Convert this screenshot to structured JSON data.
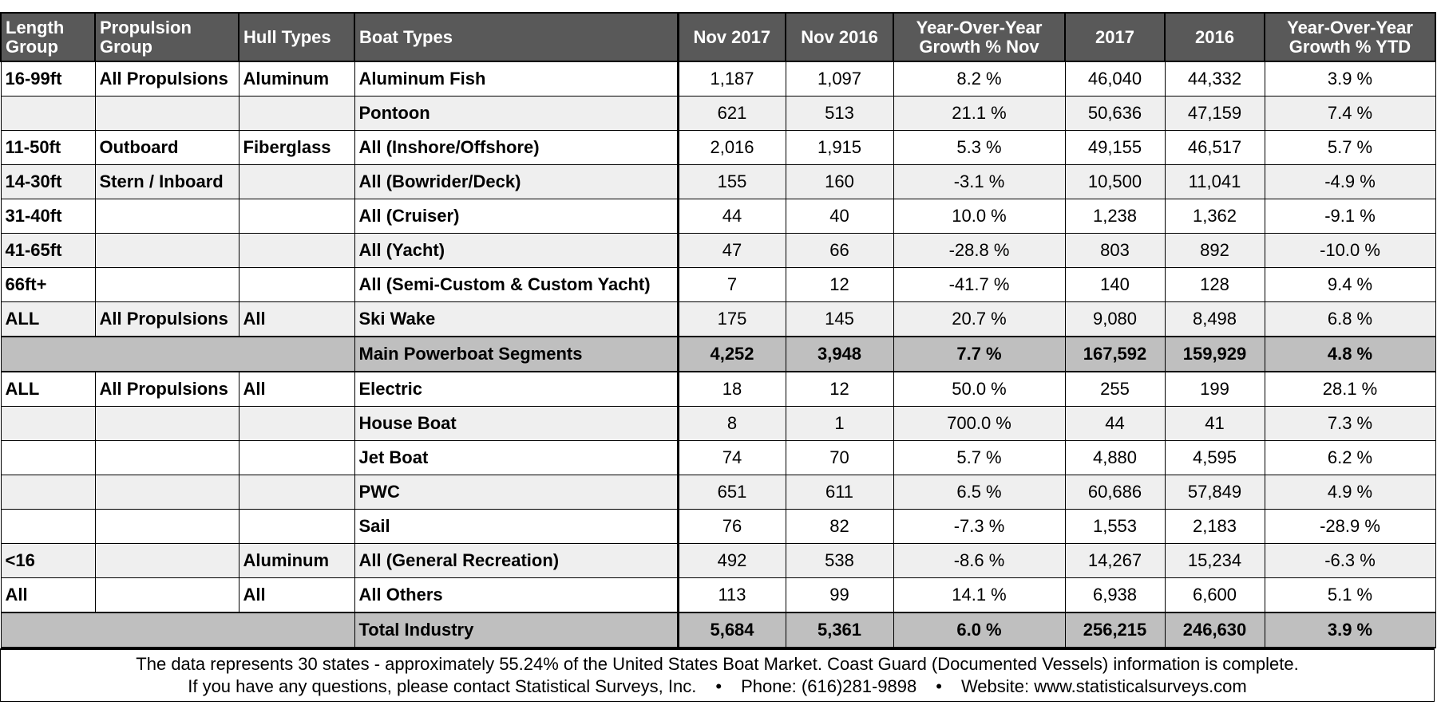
{
  "headers": [
    "Length Group",
    "Propulsion Group",
    "Hull Types",
    "Boat Types",
    "Nov 2017",
    "Nov 2016",
    "Year-Over-Year Growth % Nov",
    "2017",
    "2016",
    "Year-Over-Year Growth % YTD"
  ],
  "section1": [
    {
      "length": "16-99ft",
      "propulsion": "All Propulsions",
      "hull": "Aluminum",
      "boat": "Aluminum Fish",
      "nov17": "1,187",
      "nov16": "1,097",
      "yoy_nov": "8.2 %",
      "y2017": "46,040",
      "y2016": "44,332",
      "yoy_ytd": "3.9 %"
    },
    {
      "length": "",
      "propulsion": "",
      "hull": "",
      "boat": "Pontoon",
      "nov17": "621",
      "nov16": "513",
      "yoy_nov": "21.1 %",
      "y2017": "50,636",
      "y2016": "47,159",
      "yoy_ytd": "7.4 %"
    },
    {
      "length": "11-50ft",
      "propulsion": "Outboard",
      "hull": "Fiberglass",
      "boat": "All (Inshore/Offshore)",
      "nov17": "2,016",
      "nov16": "1,915",
      "yoy_nov": "5.3 %",
      "y2017": "49,155",
      "y2016": "46,517",
      "yoy_ytd": "5.7 %"
    },
    {
      "length": "14-30ft",
      "propulsion": "Stern / Inboard",
      "hull": "",
      "boat": "All (Bowrider/Deck)",
      "nov17": "155",
      "nov16": "160",
      "yoy_nov": "-3.1 %",
      "y2017": "10,500",
      "y2016": "11,041",
      "yoy_ytd": "-4.9 %"
    },
    {
      "length": "31-40ft",
      "propulsion": "",
      "hull": "",
      "boat": "All (Cruiser)",
      "nov17": "44",
      "nov16": "40",
      "yoy_nov": "10.0 %",
      "y2017": "1,238",
      "y2016": "1,362",
      "yoy_ytd": "-9.1 %"
    },
    {
      "length": "41-65ft",
      "propulsion": "",
      "hull": "",
      "boat": "All (Yacht)",
      "nov17": "47",
      "nov16": "66",
      "yoy_nov": "-28.8 %",
      "y2017": "803",
      "y2016": "892",
      "yoy_ytd": "-10.0 %"
    },
    {
      "length": "66ft+",
      "propulsion": "",
      "hull": "",
      "boat": "All (Semi-Custom & Custom Yacht)",
      "nov17": "7",
      "nov16": "12",
      "yoy_nov": "-41.7 %",
      "y2017": "140",
      "y2016": "128",
      "yoy_ytd": "9.4 %"
    },
    {
      "length": "ALL",
      "propulsion": "All Propulsions",
      "hull": "All",
      "boat": "Ski Wake",
      "nov17": "175",
      "nov16": "145",
      "yoy_nov": "20.7 %",
      "y2017": "9,080",
      "y2016": "8,498",
      "yoy_ytd": "6.8 %"
    }
  ],
  "subtotal": {
    "label": "Main Powerboat Segments",
    "nov17": "4,252",
    "nov16": "3,948",
    "yoy_nov": "7.7 %",
    "y2017": "167,592",
    "y2016": "159,929",
    "yoy_ytd": "4.8 %"
  },
  "section2": [
    {
      "length": "ALL",
      "propulsion": "All Propulsions",
      "hull": "All",
      "boat": "Electric",
      "nov17": "18",
      "nov16": "12",
      "yoy_nov": "50.0 %",
      "y2017": "255",
      "y2016": "199",
      "yoy_ytd": "28.1 %"
    },
    {
      "length": "",
      "propulsion": "",
      "hull": "",
      "boat": "House Boat",
      "nov17": "8",
      "nov16": "1",
      "yoy_nov": "700.0 %",
      "y2017": "44",
      "y2016": "41",
      "yoy_ytd": "7.3 %"
    },
    {
      "length": "",
      "propulsion": "",
      "hull": "",
      "boat": "Jet Boat",
      "nov17": "74",
      "nov16": "70",
      "yoy_nov": "5.7 %",
      "y2017": "4,880",
      "y2016": "4,595",
      "yoy_ytd": "6.2 %"
    },
    {
      "length": "",
      "propulsion": "",
      "hull": "",
      "boat": "PWC",
      "nov17": "651",
      "nov16": "611",
      "yoy_nov": "6.5 %",
      "y2017": "60,686",
      "y2016": "57,849",
      "yoy_ytd": "4.9 %"
    },
    {
      "length": "",
      "propulsion": "",
      "hull": "",
      "boat": "Sail",
      "nov17": "76",
      "nov16": "82",
      "yoy_nov": "-7.3 %",
      "y2017": "1,553",
      "y2016": "2,183",
      "yoy_ytd": "-28.9 %"
    },
    {
      "length": "<16",
      "propulsion": "",
      "hull": "Aluminum",
      "boat": "All (General Recreation)",
      "nov17": "492",
      "nov16": "538",
      "yoy_nov": "-8.6 %",
      "y2017": "14,267",
      "y2016": "15,234",
      "yoy_ytd": "-6.3 %"
    },
    {
      "length": "All",
      "propulsion": "",
      "hull": "All",
      "boat": "All Others",
      "nov17": "113",
      "nov16": "99",
      "yoy_nov": "14.1 %",
      "y2017": "6,938",
      "y2016": "6,600",
      "yoy_ytd": "5.1 %"
    }
  ],
  "total": {
    "label": "Total Industry",
    "nov17": "5,684",
    "nov16": "5,361",
    "yoy_nov": "6.0 %",
    "y2017": "256,215",
    "y2016": "246,630",
    "yoy_ytd": "3.9 %"
  },
  "footer": {
    "line1": "The data represents 30 states - approximately 55.24% of the United States Boat Market.  Coast Guard (Documented Vessels) information is complete.",
    "line2_a": "If you have any questions, please contact Statistical Surveys, Inc.",
    "bullet": "•",
    "line2_b": "Phone: (616)281-9898",
    "line2_c": "Website: www.statisticalsurveys.com"
  }
}
